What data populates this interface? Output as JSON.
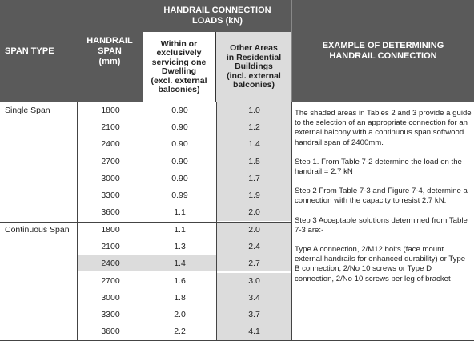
{
  "header": {
    "span_type": "SPAN TYPE",
    "handrail_span": "HANDRAIL\nSPAN\n(mm)",
    "loads": "HANDRAIL CONNECTION\nLOADS (kN)",
    "col_dwelling": "Within or\nexclusively\nservicing one\nDwelling\n(excl. external\nbalconies)",
    "col_other": "Other Areas\nin Residential\nBuildings\n(incl. external\nbalconies)",
    "example": "EXAMPLE OF DETERMINING\nHANDRAIL CONNECTION"
  },
  "groups": [
    {
      "label": "Single Span",
      "rows": [
        {
          "span": "1800",
          "dwelling": "0.90",
          "other": "1.0"
        },
        {
          "span": "2100",
          "dwelling": "0.90",
          "other": "1.2"
        },
        {
          "span": "2400",
          "dwelling": "0.90",
          "other": "1.4"
        },
        {
          "span": "2700",
          "dwelling": "0.90",
          "other": "1.5"
        },
        {
          "span": "3000",
          "dwelling": "0.90",
          "other": "1.7"
        },
        {
          "span": "3300",
          "dwelling": "0.99",
          "other": "1.9"
        },
        {
          "span": "3600",
          "dwelling": "1.1",
          "other": "2.0"
        }
      ]
    },
    {
      "label": "Continuous Span",
      "rows": [
        {
          "span": "1800",
          "dwelling": "1.1",
          "other": "2.0"
        },
        {
          "span": "2100",
          "dwelling": "1.3",
          "other": "2.4"
        },
        {
          "span": "2400",
          "dwelling": "1.4",
          "other": "2.7"
        },
        {
          "span": "2700",
          "dwelling": "1.6",
          "other": "3.0"
        },
        {
          "span": "3000",
          "dwelling": "1.8",
          "other": "3.4"
        },
        {
          "span": "3300",
          "dwelling": "2.0",
          "other": "3.7"
        },
        {
          "span": "3600",
          "dwelling": "2.2",
          "other": "4.1"
        }
      ]
    }
  ],
  "example_text": {
    "intro": "The shaded areas in Tables 2 and 3 provide a guide to the selection of an appropriate connection for an external balcony with a continuous span softwood handrail span of 2400mm.",
    "step1": "Step 1. From Table 7-2 determine the load on the handrail = 2.7 kN",
    "step2": "Step 2 From Table 7-3 and Figure 7-4, determine a connection with the capacity to resist 2.7 kN.",
    "step3": "Step 3 Acceptable solutions determined from Table 7-3 are:-",
    "solutions": "Type A connection, 2/M12 bolts (face mount external handrails for enhanced durability) or Type B connection, 2/No 10 screws or Type D connection, 2/No 10 screws per leg of bracket"
  },
  "colors": {
    "header_bg": "#5a5a5a",
    "shade": "#dcdcdc"
  }
}
